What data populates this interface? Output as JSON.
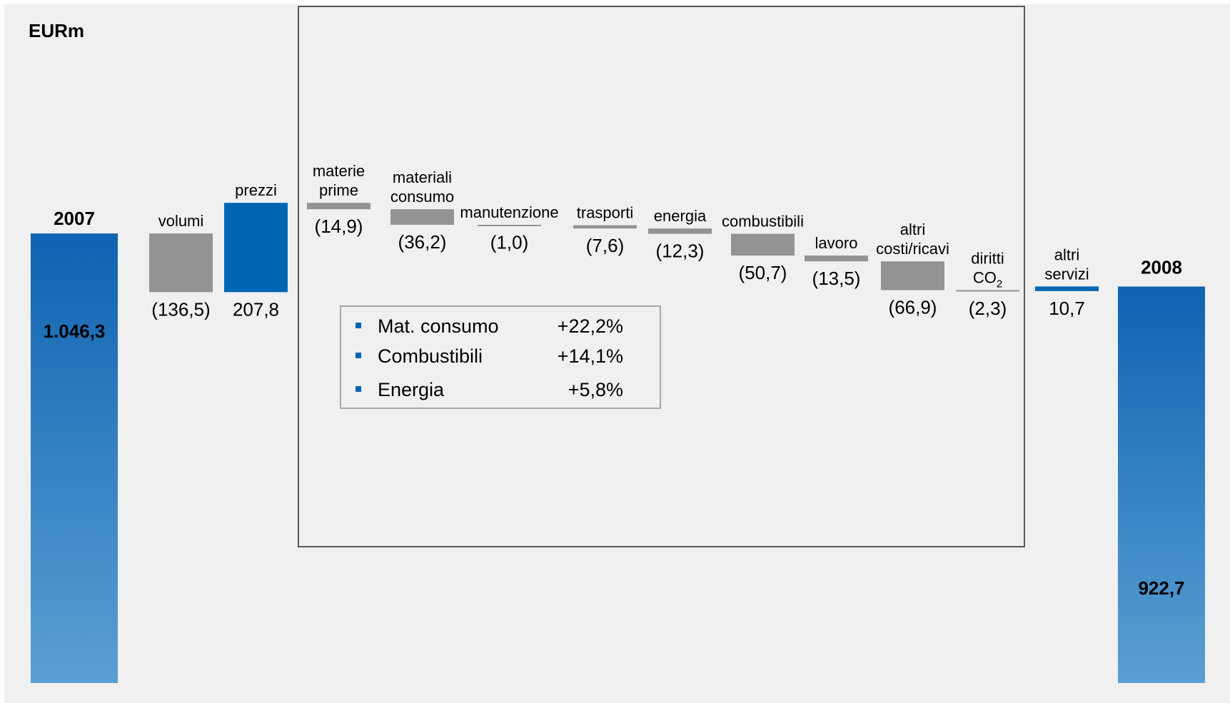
{
  "chart_data": {
    "type": "bar",
    "unit_label": "EURm",
    "start": {
      "label": "2007",
      "value": "1.046,3",
      "numeric": 1046.3
    },
    "end": {
      "label": "2008",
      "value": "922,7",
      "numeric": 922.7
    },
    "steps": [
      {
        "lines": [
          "volumi"
        ],
        "value_text": "(136,5)",
        "value": -136.5,
        "kind": "decrease"
      },
      {
        "lines": [
          "prezzi"
        ],
        "value_text": "207,8",
        "value": 207.8,
        "kind": "increase"
      },
      {
        "lines": [
          "materie",
          "prime"
        ],
        "value_text": "(14,9)",
        "value": -14.9,
        "kind": "decrease"
      },
      {
        "lines": [
          "materiali",
          "consumo"
        ],
        "value_text": "(36,2)",
        "value": -36.2,
        "kind": "decrease"
      },
      {
        "lines": [
          "manutenzione"
        ],
        "value_text": "(1,0)",
        "value": -1.0,
        "kind": "decrease"
      },
      {
        "lines": [
          "trasporti"
        ],
        "value_text": "(7,6)",
        "value": -7.6,
        "kind": "decrease"
      },
      {
        "lines": [
          "energia"
        ],
        "value_text": "(12,3)",
        "value": -12.3,
        "kind": "decrease"
      },
      {
        "lines": [
          "combustibili"
        ],
        "value_text": "(50,7)",
        "value": -50.7,
        "kind": "decrease"
      },
      {
        "lines": [
          "lavoro"
        ],
        "value_text": "(13,5)",
        "value": -13.5,
        "kind": "decrease"
      },
      {
        "lines": [
          "altri",
          "costi/ricavi"
        ],
        "value_text": "(66,9)",
        "value": -66.9,
        "kind": "decrease"
      },
      {
        "lines": [
          "diritti",
          "CO2"
        ],
        "value_text": "(2,3)",
        "value": -2.3,
        "kind": "decrease"
      },
      {
        "lines": [
          "altri",
          "servizi"
        ],
        "value_text": "10,7",
        "value": 10.7,
        "kind": "increase"
      }
    ],
    "inset_table": [
      {
        "label": "Mat. consumo",
        "value": "+22,2%"
      },
      {
        "label": "Combustibili",
        "value": "+14,1%"
      },
      {
        "label": "Energia",
        "value": "+5,8%"
      }
    ],
    "colors": {
      "background": "#f0f0f0",
      "decrease": "#939393",
      "increase": "#0066b3",
      "total_top": "#1063b2",
      "total_bottom": "#5a9fd2",
      "frame": "#595959",
      "inset_border": "#a6a6a6",
      "bullet": "#0066b3"
    }
  }
}
